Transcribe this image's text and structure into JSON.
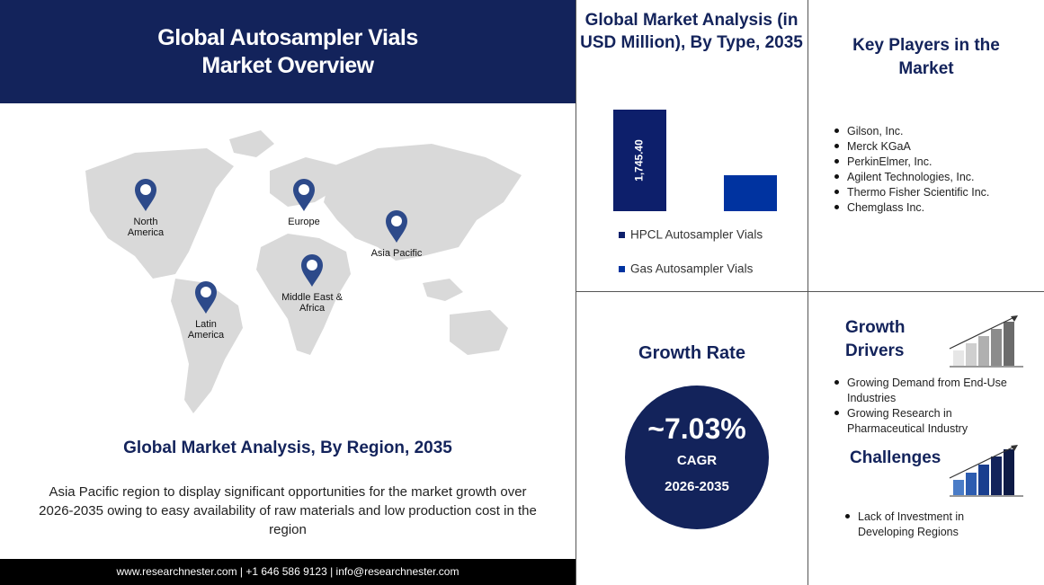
{
  "header": {
    "title_lines": [
      "Global Autosampler Vials",
      "Market Overview"
    ]
  },
  "map": {
    "regions": [
      "North America",
      "Europe",
      "Asia Pacific",
      "Middle East & Africa",
      "Latin America"
    ]
  },
  "region_analysis": {
    "title": "Global Market Analysis, By Region, 2035",
    "text": "Asia Pacific region to display significant opportunities for the market growth over 2026-2035 owing to easy availability of raw materials and low production cost in the region"
  },
  "footer": "www.researchnester.com | +1 646 586 9123 | info@researchnester.com",
  "chart_data": {
    "type": "bar",
    "title": "Global Market Analysis (in USD Million), By Type, 2035",
    "categories": [
      "HPCL Autosampler Vials",
      "Gas Autosampler Vials"
    ],
    "values": [
      1745.4,
      618
    ],
    "value_labels": [
      "1,745.40",
      null
    ],
    "colors": [
      "#0d1f6b",
      "#0033a0"
    ]
  },
  "key_players": {
    "title": "Key Players in the Market",
    "items": [
      "Gilson, Inc.",
      "Merck KGaA",
      "PerkinElmer, Inc.",
      "Agilent Technologies,  Inc.",
      "Thermo Fisher Scientific Inc.",
      "Chemglass Inc."
    ]
  },
  "growth_rate": {
    "title": "Growth Rate",
    "value": "~7.03%",
    "label": "CAGR",
    "period": "2026-2035"
  },
  "growth_drivers": {
    "title": "Growth Drivers",
    "items": [
      "Growing Demand from End-Use Industries",
      "Growing Research in Pharmaceutical Industry"
    ]
  },
  "challenges": {
    "title": "Challenges",
    "items": [
      "Lack of Investment in Developing Regions"
    ]
  }
}
